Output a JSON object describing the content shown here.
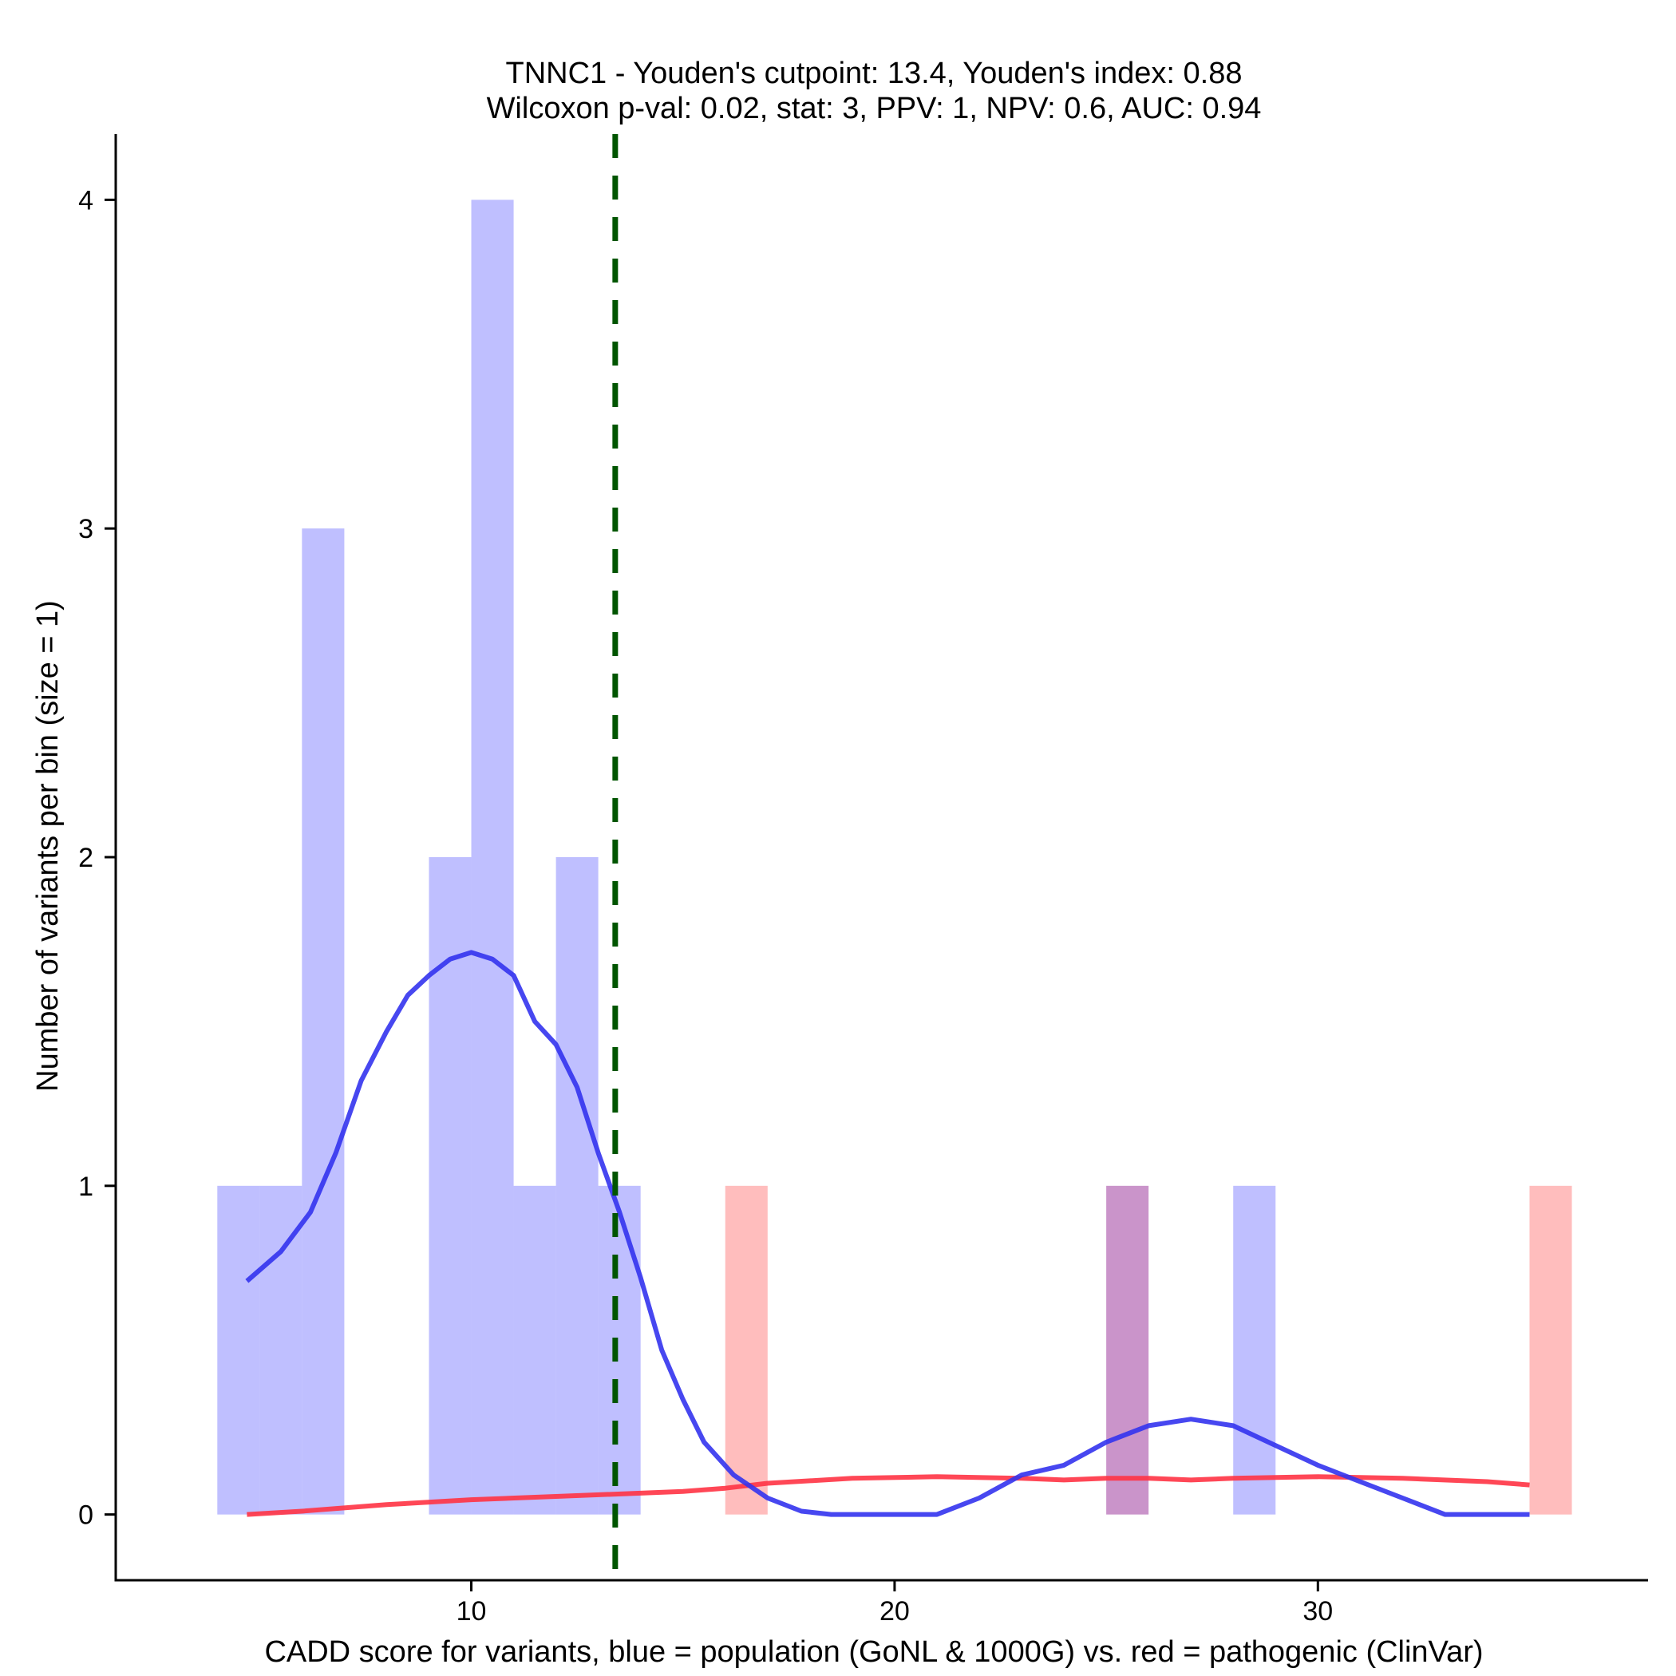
{
  "chart_data": {
    "type": "bar",
    "title": "TNNC1 - Youden's cutpoint: 13.4, Youden's index: 0.88",
    "subtitle": "Wilcoxon p-val: 0.02, stat: 3, PPV: 1, NPV: 0.6, AUC: 0.94",
    "xlabel": "CADD score for variants, blue = population (GoNL & 1000G) vs. red = pathogenic (ClinVar)",
    "ylabel": "Number of variants per bin (size = 1)",
    "xlim": [
      1.6,
      37.8
    ],
    "ylim": [
      -0.2,
      4.2
    ],
    "x_ticks": [
      10,
      20,
      30
    ],
    "y_ticks": [
      0,
      1,
      2,
      3,
      4
    ],
    "x_tick_labels": [
      "10",
      "20",
      "30"
    ],
    "y_tick_labels": [
      "0",
      "1",
      "2",
      "3",
      "4"
    ],
    "cutpoint": 13.4,
    "bin_width": 1,
    "series": [
      {
        "name": "population",
        "color": "#8080ff",
        "bins": [
          {
            "x0": 4,
            "x1": 5,
            "count": 1
          },
          {
            "x0": 5,
            "x1": 6,
            "count": 1
          },
          {
            "x0": 6,
            "x1": 7,
            "count": 3
          },
          {
            "x0": 9,
            "x1": 10,
            "count": 2
          },
          {
            "x0": 10,
            "x1": 11,
            "count": 4
          },
          {
            "x0": 11,
            "x1": 12,
            "count": 1
          },
          {
            "x0": 12,
            "x1": 13,
            "count": 2
          },
          {
            "x0": 13,
            "x1": 14,
            "count": 1
          },
          {
            "x0": 25,
            "x1": 26,
            "count": 1
          },
          {
            "x0": 28,
            "x1": 29,
            "count": 1
          }
        ],
        "density_color": "#3333ee",
        "density": [
          [
            4.7,
            0.71
          ],
          [
            5.5,
            0.8
          ],
          [
            6.2,
            0.92
          ],
          [
            6.8,
            1.1
          ],
          [
            7.4,
            1.32
          ],
          [
            8.0,
            1.47
          ],
          [
            8.5,
            1.58
          ],
          [
            9.0,
            1.64
          ],
          [
            9.5,
            1.69
          ],
          [
            10.0,
            1.71
          ],
          [
            10.5,
            1.69
          ],
          [
            11.0,
            1.64
          ],
          [
            11.5,
            1.5
          ],
          [
            12.0,
            1.43
          ],
          [
            12.5,
            1.3
          ],
          [
            13.0,
            1.1
          ],
          [
            13.5,
            0.92
          ],
          [
            14.0,
            0.72
          ],
          [
            14.5,
            0.5
          ],
          [
            15.0,
            0.35
          ],
          [
            15.5,
            0.22
          ],
          [
            16.2,
            0.12
          ],
          [
            17.0,
            0.05
          ],
          [
            17.8,
            0.01
          ],
          [
            18.5,
            0.0
          ],
          [
            20.0,
            0.0
          ],
          [
            21.0,
            0.0
          ],
          [
            22.0,
            0.05
          ],
          [
            23.0,
            0.12
          ],
          [
            24.0,
            0.15
          ],
          [
            25.0,
            0.22
          ],
          [
            26.0,
            0.27
          ],
          [
            27.0,
            0.29
          ],
          [
            28.0,
            0.27
          ],
          [
            29.0,
            0.21
          ],
          [
            30.0,
            0.15
          ],
          [
            31.0,
            0.1
          ],
          [
            32.0,
            0.05
          ],
          [
            33.0,
            0.0
          ],
          [
            35.0,
            0.0
          ]
        ]
      },
      {
        "name": "pathogenic",
        "color": "#ff9999",
        "bins": [
          {
            "x0": 16,
            "x1": 17,
            "count": 1
          },
          {
            "x0": 25,
            "x1": 26,
            "count": 1
          },
          {
            "x0": 35,
            "x1": 36,
            "count": 1
          }
        ],
        "density_color": "#ff3344",
        "density": [
          [
            4.7,
            0.0
          ],
          [
            6.0,
            0.01
          ],
          [
            8.0,
            0.03
          ],
          [
            10.0,
            0.045
          ],
          [
            12.0,
            0.055
          ],
          [
            14.0,
            0.065
          ],
          [
            15.0,
            0.07
          ],
          [
            16.0,
            0.08
          ],
          [
            17.0,
            0.095
          ],
          [
            19.0,
            0.11
          ],
          [
            21.0,
            0.115
          ],
          [
            23.0,
            0.11
          ],
          [
            24.0,
            0.105
          ],
          [
            25.0,
            0.11
          ],
          [
            26.0,
            0.11
          ],
          [
            27.0,
            0.105
          ],
          [
            28.0,
            0.11
          ],
          [
            30.0,
            0.115
          ],
          [
            32.0,
            0.11
          ],
          [
            34.0,
            0.1
          ],
          [
            35.0,
            0.09
          ]
        ]
      }
    ],
    "overlap_color": "#b366b3",
    "cutpoint_color": "#005500"
  }
}
